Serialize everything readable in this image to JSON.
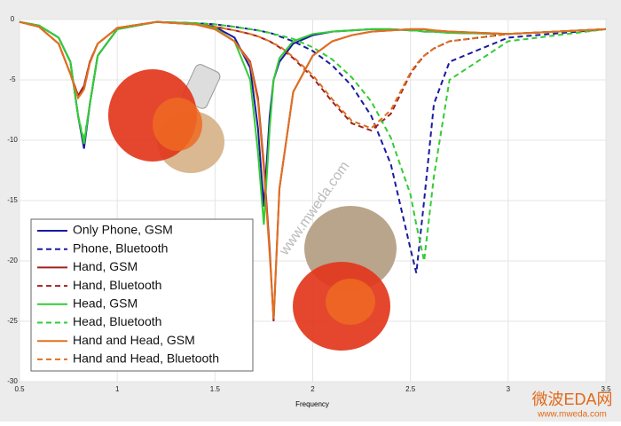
{
  "chart_data": {
    "type": "line",
    "xlabel": "Frequency",
    "x": [
      0.5,
      0.6,
      0.7,
      0.76,
      0.8,
      0.83,
      0.86,
      0.9,
      1.0,
      1.2,
      1.4,
      1.5,
      1.6,
      1.68,
      1.72,
      1.75,
      1.78,
      1.8,
      1.83,
      1.9,
      2.0,
      2.1,
      2.2,
      2.3,
      2.4,
      2.5,
      2.53,
      2.57,
      2.62,
      2.7,
      3.0,
      3.5
    ],
    "series": [
      {
        "name": "Only Phone, GSM",
        "color": "#1a1aa0",
        "dash": false,
        "values": [
          -0.2,
          -0.5,
          -1.5,
          -3.5,
          -8,
          -10.7,
          -7,
          -3,
          -0.8,
          -0.2,
          -0.3,
          -0.6,
          -1.5,
          -4,
          -9,
          -15.5,
          -8,
          -5,
          -3.5,
          -2,
          -1.3,
          -1,
          -0.9,
          -0.8,
          -0.8,
          -0.9,
          -0.9,
          -1,
          -1,
          -1.1,
          -1.2,
          -0.8
        ]
      },
      {
        "name": "Phone, Bluetooth",
        "color": "#1a1aa0",
        "dash": true,
        "values": [
          -0.2,
          -0.5,
          -1.5,
          -3.5,
          -8,
          -10.5,
          -7,
          -3,
          -0.8,
          -0.2,
          -0.3,
          -0.4,
          -0.6,
          -0.8,
          -0.9,
          -1,
          -1.1,
          -1.2,
          -1.4,
          -1.8,
          -2.6,
          -3.8,
          -5.5,
          -8,
          -12,
          -19,
          -21,
          -15,
          -7,
          -3.5,
          -1.5,
          -0.8
        ]
      },
      {
        "name": "Hand, GSM",
        "color": "#a02020",
        "dash": false,
        "values": [
          -0.2,
          -0.6,
          -2,
          -4.5,
          -6.3,
          -5.5,
          -3.5,
          -2,
          -0.7,
          -0.2,
          -0.4,
          -0.8,
          -1.8,
          -3.5,
          -6.5,
          -12,
          -19,
          -25,
          -14,
          -6,
          -3,
          -1.8,
          -1.3,
          -1,
          -0.9,
          -0.8,
          -0.8,
          -0.8,
          -0.9,
          -1,
          -1.2,
          -0.8
        ]
      },
      {
        "name": "Hand, Bluetooth",
        "color": "#a02020",
        "dash": true,
        "values": [
          -0.2,
          -0.6,
          -2,
          -4.5,
          -6.3,
          -5.5,
          -3.5,
          -2,
          -0.7,
          -0.2,
          -0.4,
          -0.6,
          -0.9,
          -1.2,
          -1.4,
          -1.6,
          -1.8,
          -2,
          -2.3,
          -3.2,
          -4.8,
          -6.8,
          -8.6,
          -9.2,
          -7.8,
          -4.5,
          -3.8,
          -3,
          -2.4,
          -1.8,
          -1.2,
          -0.8
        ]
      },
      {
        "name": "Head, GSM",
        "color": "#33cc33",
        "dash": false,
        "values": [
          -0.2,
          -0.5,
          -1.5,
          -3.5,
          -8,
          -10.3,
          -7,
          -3,
          -0.8,
          -0.2,
          -0.3,
          -0.7,
          -1.8,
          -5,
          -11,
          -17,
          -9,
          -5,
          -3.2,
          -1.8,
          -1.2,
          -1,
          -0.9,
          -0.8,
          -0.8,
          -0.9,
          -0.9,
          -1,
          -1,
          -1.1,
          -1.2,
          -0.8
        ]
      },
      {
        "name": "Head, Bluetooth",
        "color": "#33cc33",
        "dash": true,
        "values": [
          -0.2,
          -0.5,
          -1.5,
          -3.5,
          -8,
          -10,
          -7,
          -3,
          -0.8,
          -0.2,
          -0.3,
          -0.4,
          -0.6,
          -0.8,
          -0.9,
          -1,
          -1.1,
          -1.2,
          -1.3,
          -1.6,
          -2.3,
          -3.3,
          -4.8,
          -6.8,
          -9.8,
          -14.5,
          -17,
          -20,
          -13,
          -5,
          -1.8,
          -0.8
        ]
      },
      {
        "name": "Hand and Head, GSM",
        "color": "#e07020",
        "dash": false,
        "values": [
          -0.2,
          -0.6,
          -2,
          -4.5,
          -6.5,
          -5.8,
          -3.6,
          -2,
          -0.7,
          -0.2,
          -0.4,
          -0.8,
          -1.8,
          -3.6,
          -6.8,
          -12.5,
          -19.5,
          -24.8,
          -14,
          -6,
          -3,
          -1.8,
          -1.3,
          -1,
          -0.9,
          -0.8,
          -0.8,
          -0.8,
          -0.9,
          -1,
          -1.2,
          -0.8
        ]
      },
      {
        "name": "Hand and Head, Bluetooth",
        "color": "#e07020",
        "dash": true,
        "values": [
          -0.2,
          -0.6,
          -2,
          -4.5,
          -6.5,
          -5.8,
          -3.6,
          -2,
          -0.7,
          -0.2,
          -0.4,
          -0.6,
          -0.9,
          -1.2,
          -1.4,
          -1.6,
          -1.8,
          -2,
          -2.2,
          -3.1,
          -4.6,
          -6.6,
          -8.4,
          -9,
          -7.5,
          -4.4,
          -3.7,
          -3,
          -2.4,
          -1.8,
          -1.2,
          -0.8
        ]
      }
    ],
    "xlim": [
      0.5,
      3.5
    ],
    "xticks": [
      0.5,
      1,
      1.5,
      2,
      2.5,
      3,
      3.5
    ],
    "ylim": [
      -30,
      0
    ],
    "yticks": [
      0,
      -5,
      -10,
      -15,
      -20,
      -25,
      -30
    ],
    "grid": true,
    "watermark": "www.mweda.com",
    "logo": "微波EDA网",
    "logo_url": "www.mweda.com"
  }
}
